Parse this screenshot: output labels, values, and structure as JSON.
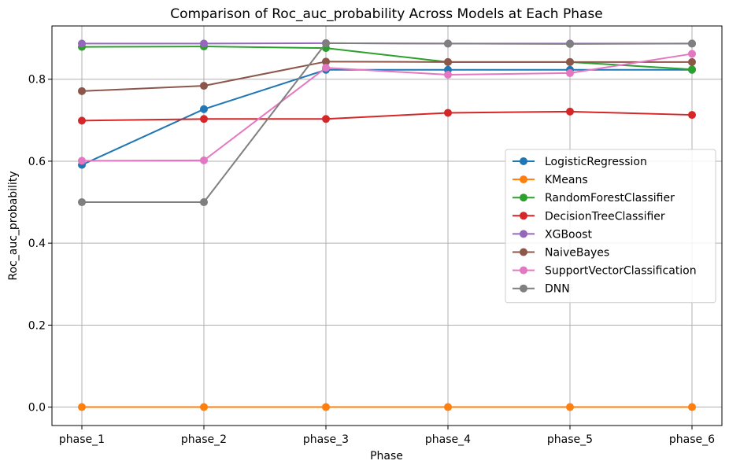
{
  "chart_data": {
    "type": "line",
    "title": "Comparison of Roc_auc_probability Across Models at Each Phase",
    "xlabel": "Phase",
    "ylabel": "Roc_auc_probability",
    "categories": [
      "phase_1",
      "phase_2",
      "phase_3",
      "phase_4",
      "phase_5",
      "phase_6"
    ],
    "ylim": [
      -0.045,
      0.93
    ],
    "yticks": [
      0.0,
      0.2,
      0.4,
      0.6,
      0.8
    ],
    "ytick_labels": [
      "0.0",
      "0.2",
      "0.4",
      "0.6",
      "0.8"
    ],
    "grid": true,
    "legend_position": "center-right",
    "series": [
      {
        "name": "LogisticRegression",
        "color": "#1f77b4",
        "values": [
          0.591,
          0.727,
          0.823,
          0.823,
          0.823,
          0.823
        ]
      },
      {
        "name": "KMeans",
        "color": "#ff7f0e",
        "values": [
          0.0,
          0.0,
          0.0,
          0.0,
          0.0,
          0.0
        ]
      },
      {
        "name": "RandomForestClassifier",
        "color": "#2ca02c",
        "values": [
          0.879,
          0.88,
          0.876,
          0.842,
          0.842,
          0.824
        ]
      },
      {
        "name": "DecisionTreeClassifier",
        "color": "#d62728",
        "values": [
          0.699,
          0.703,
          0.703,
          0.718,
          0.721,
          0.713
        ]
      },
      {
        "name": "XGBoost",
        "color": "#9467bd",
        "values": [
          0.887,
          0.887,
          0.888,
          0.887,
          0.887,
          0.887
        ]
      },
      {
        "name": "NaiveBayes",
        "color": "#8c564b",
        "values": [
          0.771,
          0.784,
          0.843,
          0.842,
          0.842,
          0.842
        ]
      },
      {
        "name": "SupportVectorClassification",
        "color": "#e377c2",
        "values": [
          0.601,
          0.602,
          0.828,
          0.811,
          0.815,
          0.862
        ]
      },
      {
        "name": "DNN",
        "color": "#7f7f7f",
        "values": [
          0.5,
          0.5,
          0.888,
          0.887,
          0.886,
          0.887
        ]
      }
    ]
  }
}
